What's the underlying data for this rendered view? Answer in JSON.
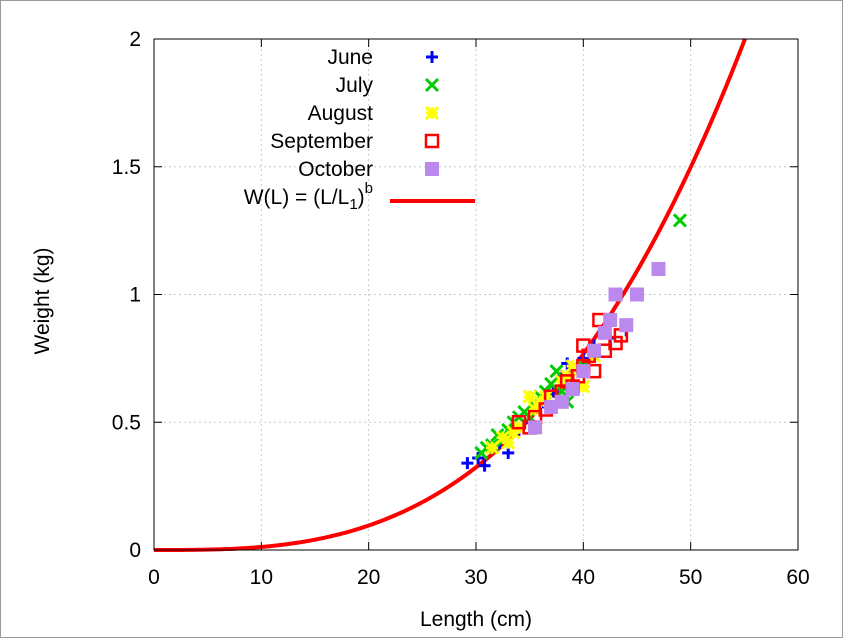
{
  "chart_data": {
    "type": "scatter",
    "xlabel": "Length (cm)",
    "ylabel": "Weight (kg)",
    "xlim": [
      0,
      60
    ],
    "ylim": [
      0,
      2
    ],
    "x_ticks": [
      0,
      10,
      20,
      30,
      40,
      50,
      60
    ],
    "y_ticks": [
      0,
      0.5,
      1,
      1.5,
      2
    ],
    "x_tick_labels": [
      "0",
      "10",
      "20",
      "30",
      "40",
      "50",
      "60"
    ],
    "y_tick_labels": [
      "0",
      "0.5",
      "1",
      "1.5",
      "2"
    ],
    "grid": true,
    "legend_position": "top-left (inside plot)",
    "series": [
      {
        "name": "June",
        "marker": "plus",
        "color": "#0000ff",
        "points": [
          [
            29.2,
            0.34
          ],
          [
            30.2,
            0.36
          ],
          [
            30.8,
            0.33
          ],
          [
            31.5,
            0.4
          ],
          [
            32.2,
            0.42
          ],
          [
            33.0,
            0.38
          ],
          [
            34.0,
            0.47
          ],
          [
            35.0,
            0.5
          ],
          [
            36.0,
            0.56
          ],
          [
            37.2,
            0.62
          ],
          [
            38.0,
            0.68
          ],
          [
            38.5,
            0.73
          ],
          [
            39.0,
            0.7
          ],
          [
            40.0,
            0.75
          ],
          [
            41.0,
            0.8
          ],
          [
            42.5,
            0.83
          ],
          [
            44.0,
            0.86
          ]
        ]
      },
      {
        "name": "July",
        "marker": "x",
        "color": "#00cc00",
        "points": [
          [
            30.5,
            0.38
          ],
          [
            31.0,
            0.4
          ],
          [
            31.5,
            0.41
          ],
          [
            32.0,
            0.45
          ],
          [
            32.5,
            0.43
          ],
          [
            33.0,
            0.47
          ],
          [
            33.5,
            0.5
          ],
          [
            34.0,
            0.52
          ],
          [
            34.5,
            0.54
          ],
          [
            35.0,
            0.52
          ],
          [
            35.5,
            0.56
          ],
          [
            36.0,
            0.6
          ],
          [
            36.5,
            0.62
          ],
          [
            37.0,
            0.65
          ],
          [
            37.5,
            0.7
          ],
          [
            38.0,
            0.62
          ],
          [
            38.5,
            0.58
          ],
          [
            40.0,
            0.72
          ],
          [
            49.0,
            1.29
          ]
        ]
      },
      {
        "name": "August",
        "marker": "star",
        "color": "#ffff00",
        "points": [
          [
            31.5,
            0.4
          ],
          [
            32.5,
            0.44
          ],
          [
            33.0,
            0.42
          ],
          [
            33.5,
            0.46
          ],
          [
            34.0,
            0.48
          ],
          [
            35.0,
            0.6
          ],
          [
            35.5,
            0.55
          ],
          [
            36.0,
            0.58
          ],
          [
            36.5,
            0.6
          ],
          [
            37.0,
            0.56
          ],
          [
            38.0,
            0.66
          ],
          [
            38.5,
            0.68
          ],
          [
            39.0,
            0.72
          ],
          [
            39.5,
            0.7
          ],
          [
            40.0,
            0.64
          ],
          [
            41.0,
            0.76
          ]
        ]
      },
      {
        "name": "September",
        "marker": "empty-square",
        "color": "#ff0000",
        "points": [
          [
            34.0,
            0.5
          ],
          [
            35.0,
            0.48
          ],
          [
            35.5,
            0.52
          ],
          [
            36.5,
            0.55
          ],
          [
            37.0,
            0.6
          ],
          [
            38.0,
            0.62
          ],
          [
            38.5,
            0.66
          ],
          [
            39.0,
            0.64
          ],
          [
            39.5,
            0.68
          ],
          [
            40.0,
            0.72
          ],
          [
            40.0,
            0.8
          ],
          [
            40.5,
            0.76
          ],
          [
            41.0,
            0.7
          ],
          [
            41.5,
            0.9
          ],
          [
            42.0,
            0.78
          ],
          [
            43.0,
            0.81
          ],
          [
            43.5,
            0.84
          ]
        ]
      },
      {
        "name": "October",
        "marker": "filled-square",
        "color": "#bb88ee",
        "points": [
          [
            35.5,
            0.48
          ],
          [
            37.0,
            0.56
          ],
          [
            38.0,
            0.58
          ],
          [
            39.0,
            0.63
          ],
          [
            40.0,
            0.7
          ],
          [
            41.0,
            0.78
          ],
          [
            42.0,
            0.85
          ],
          [
            42.5,
            0.9
          ],
          [
            43.0,
            1.0
          ],
          [
            44.0,
            0.88
          ],
          [
            45.0,
            1.0
          ],
          [
            47.0,
            1.1
          ]
        ]
      }
    ],
    "fit_curve": {
      "name": "W(L) = (L/L",
      "name_subscript": "1",
      "name_close": ")",
      "name_superscript": "b",
      "color": "#ff0000",
      "L1": 43.7,
      "b": 3.0,
      "x_range": [
        0,
        60
      ]
    }
  }
}
